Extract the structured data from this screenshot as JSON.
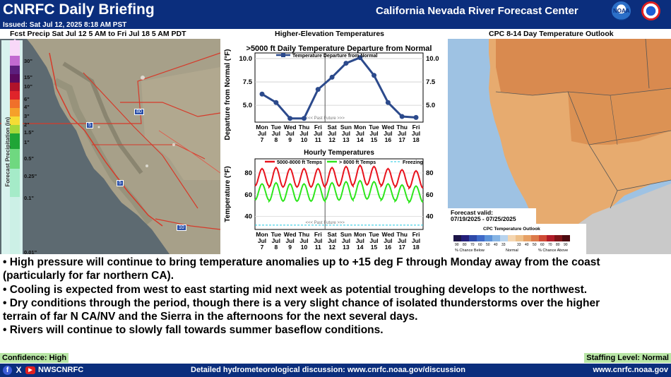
{
  "header": {
    "title": "CNRFC Daily Briefing",
    "center": "California Nevada River Forecast Center",
    "issued": "Issued: Sat Jul 12, 2025 8:18 AM PST",
    "noaa": "NOAA"
  },
  "precip": {
    "title": "Fcst Precip Sat Jul 12 5 AM to Fri Jul 18 5 AM PDT",
    "axis_label": "Forecast Precipitation (in)",
    "scale": [
      "30\"",
      "15\"",
      "10\"",
      "6\"",
      "4\"",
      "3\"",
      "2\"",
      "1.5\"",
      "1\"",
      "0.5\"",
      "0.25\"",
      "0.1\"",
      "0.01\""
    ],
    "hwys": [
      "80",
      "5",
      "5",
      "10"
    ]
  },
  "temps": {
    "title": "Higher-Elevation Temperatures",
    "days": [
      [
        "Mon",
        "Jul",
        "7"
      ],
      [
        "Tue",
        "Jul",
        "8"
      ],
      [
        "Wed",
        "Jul",
        "9"
      ],
      [
        "Thu",
        "Jul",
        "10"
      ],
      [
        "Fri",
        "Jul",
        "11"
      ],
      [
        "Sat",
        "Jul",
        "12"
      ],
      [
        "Sun",
        "Jul",
        "13"
      ],
      [
        "Mon",
        "Jul",
        "14"
      ],
      [
        "Tue",
        "Jul",
        "15"
      ],
      [
        "Wed",
        "Jul",
        "16"
      ],
      [
        "Thu",
        "Jul",
        "17"
      ],
      [
        "Fri",
        "Jul",
        "18"
      ]
    ]
  },
  "chart_data": [
    {
      "type": "line",
      "title": ">5000 ft Daily Temperature Departure from Normal",
      "ylabel": "Departure from Normal (°F)",
      "yticks": [
        5.0,
        7.5,
        10.0
      ],
      "ylim": [
        3.2,
        10.6
      ],
      "series": [
        {
          "name": "Temperature Departure from Normal",
          "color": "#2c4a8c",
          "values": [
            6.2,
            5.3,
            3.6,
            3.6,
            6.7,
            8.0,
            9.5,
            10.1,
            8.2,
            5.3,
            3.8,
            3.7
          ]
        }
      ],
      "annotation": "<<< Past   Future >>>"
    },
    {
      "type": "line",
      "title": "Hourly Temperatures",
      "ylabel": "Temperature (°F)",
      "yticks": [
        40,
        60,
        80
      ],
      "ylim": [
        28,
        93
      ],
      "series": [
        {
          "name": "5000-8000 ft Temps",
          "color": "#e8141e",
          "min": [
            68,
            67,
            67,
            67,
            67,
            68,
            68,
            69,
            69,
            68,
            67,
            66
          ],
          "max": [
            84,
            85,
            84,
            84,
            84,
            85,
            86,
            87,
            86,
            84,
            83,
            82
          ]
        },
        {
          "name": "> 8000 ft Temps",
          "color": "#2ee61d",
          "min": [
            55,
            54,
            54,
            54,
            54,
            55,
            55,
            56,
            56,
            55,
            54,
            53
          ],
          "max": [
            70,
            71,
            70,
            70,
            70,
            71,
            72,
            73,
            72,
            70,
            69,
            68
          ]
        },
        {
          "name": "Freezing",
          "color": "#1ec8e0",
          "value": 32
        }
      ],
      "annotation": "<<< Past   Future >>>"
    }
  ],
  "cpc": {
    "title": "CPC 8-14 Day Temperature Outlook",
    "valid_label": "Forecast valid:",
    "valid_dates": "07/19/2025 - 07/25/2025",
    "legend_title": "CPC Temperature Outlook",
    "legend_nums": [
      "90",
      "80",
      "70",
      "60",
      "50",
      "40",
      "33",
      "33",
      "40",
      "50",
      "60",
      "70",
      "80",
      "90"
    ],
    "legend_below": "% Chance Below",
    "legend_normal": "Normal",
    "legend_above": "% Chance Above"
  },
  "bullets": [
    "• High pressure will continue to bring temperature anomalies up to +15 deg F through Monday away from the coast",
    "(particularly for far northern CA).",
    "• Cooling is expected from west to east starting mid next week as potential troughing develops to the northwest.",
    "• Dry conditions through the period, though there is a very slight chance of isolated thunderstorms over the higher",
    "terrain of far N CA/NV and the Sierra in the afternoons for the next several days.",
    "• Rivers will continue to slowly fall towards summer baseflow conditions."
  ],
  "confidence": "Confidence: High",
  "staffing": "Staffing Level: Normal",
  "footer": {
    "social": "NWSCNRFC",
    "discussion": "Detailed hydrometeorological discussion: www.cnrfc.noaa.gov/discussion",
    "url": "www.cnrfc.noaa.gov"
  }
}
